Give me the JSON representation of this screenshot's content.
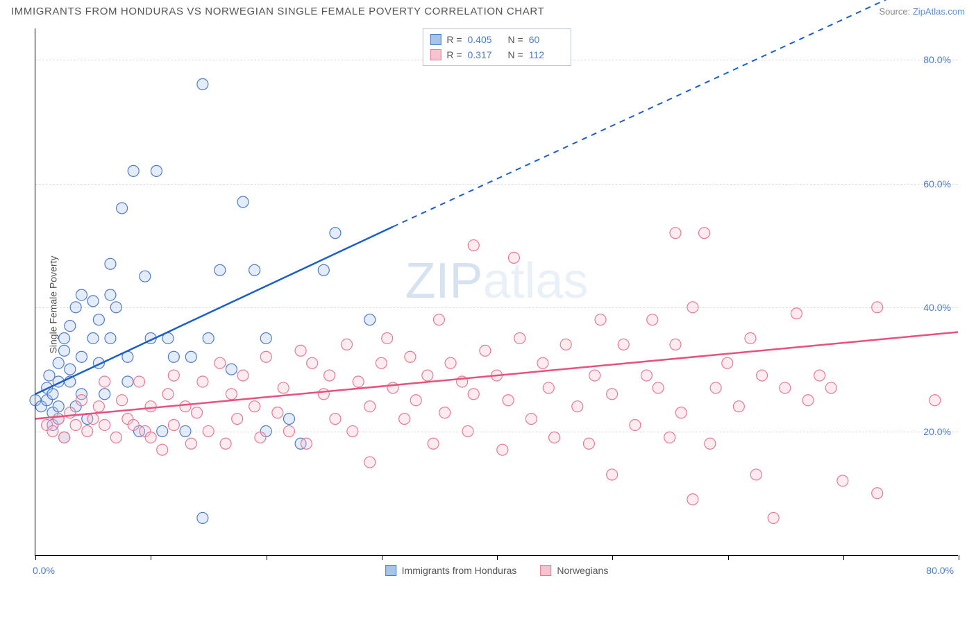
{
  "header": {
    "title": "IMMIGRANTS FROM HONDURAS VS NORWEGIAN SINGLE FEMALE POVERTY CORRELATION CHART",
    "source_prefix": "Source: ",
    "source_link": "ZipAtlas.com"
  },
  "chart": {
    "type": "scatter",
    "y_axis_label": "Single Female Poverty",
    "background_color": "#ffffff",
    "grid_color": "#dcdcdc",
    "axis_color": "#000000",
    "tick_label_color": "#4a7bc9",
    "title_fontsize": 15,
    "label_fontsize": 14,
    "xlim": [
      0,
      80
    ],
    "ylim": [
      0,
      85
    ],
    "x_min_label": "0.0%",
    "x_max_label": "80.0%",
    "y_ticks": [
      {
        "value": 20,
        "label": "20.0%"
      },
      {
        "value": 40,
        "label": "40.0%"
      },
      {
        "value": 60,
        "label": "60.0%"
      },
      {
        "value": 80,
        "label": "80.0%"
      }
    ],
    "x_tick_positions": [
      0,
      10,
      20,
      30,
      40,
      50,
      60,
      70,
      80
    ],
    "watermark": "ZIPatlas",
    "marker_radius": 8,
    "marker_opacity": 0.32,
    "line_width": 2.5,
    "series": [
      {
        "id": "honduras",
        "label": "Immigrants from Honduras",
        "color_fill": "#a8c5e8",
        "color_stroke": "#4a7bc9",
        "line_color": "#1a5fc9",
        "r_value": "0.405",
        "n_value": "60",
        "trend": {
          "x1": 0,
          "y1": 26,
          "x2_solid": 31,
          "y2_solid": 53,
          "x2_dash": 80,
          "y2_dash": 95
        },
        "points": [
          [
            0,
            25
          ],
          [
            0.5,
            24
          ],
          [
            1,
            25
          ],
          [
            1,
            27
          ],
          [
            1.2,
            29
          ],
          [
            1.5,
            23
          ],
          [
            1.5,
            26
          ],
          [
            1.5,
            21
          ],
          [
            2,
            22
          ],
          [
            2,
            28
          ],
          [
            2,
            31
          ],
          [
            2,
            24
          ],
          [
            2.5,
            19
          ],
          [
            2.5,
            33
          ],
          [
            2.5,
            35
          ],
          [
            3,
            28
          ],
          [
            3,
            37
          ],
          [
            3,
            30
          ],
          [
            3.5,
            24
          ],
          [
            3.5,
            40
          ],
          [
            4,
            32
          ],
          [
            4,
            26
          ],
          [
            4,
            42
          ],
          [
            4.5,
            22
          ],
          [
            5,
            41
          ],
          [
            5,
            35
          ],
          [
            5.5,
            31
          ],
          [
            5.5,
            38
          ],
          [
            6,
            26
          ],
          [
            6.5,
            42
          ],
          [
            6.5,
            35
          ],
          [
            6.5,
            47
          ],
          [
            7,
            40
          ],
          [
            7.5,
            56
          ],
          [
            8,
            32
          ],
          [
            8,
            28
          ],
          [
            8.5,
            62
          ],
          [
            9,
            20
          ],
          [
            9.5,
            45
          ],
          [
            10,
            35
          ],
          [
            10.5,
            62
          ],
          [
            11,
            20
          ],
          [
            11.5,
            35
          ],
          [
            12,
            32
          ],
          [
            13,
            20
          ],
          [
            13.5,
            32
          ],
          [
            14.5,
            76
          ],
          [
            14.5,
            6
          ],
          [
            15,
            35
          ],
          [
            16,
            46
          ],
          [
            17,
            30
          ],
          [
            18,
            57
          ],
          [
            19,
            46
          ],
          [
            20,
            35
          ],
          [
            20,
            20
          ],
          [
            22,
            22
          ],
          [
            23,
            18
          ],
          [
            25,
            46
          ],
          [
            26,
            52
          ],
          [
            29,
            38
          ]
        ]
      },
      {
        "id": "norwegians",
        "label": "Norwegians",
        "color_fill": "#f5c4d0",
        "color_stroke": "#e77896",
        "line_color": "#e8517c",
        "r_value": "0.317",
        "n_value": "112",
        "trend": {
          "x1": 0,
          "y1": 22,
          "x2_solid": 80,
          "y2_solid": 36,
          "x2_dash": 80,
          "y2_dash": 36
        },
        "points": [
          [
            1,
            21
          ],
          [
            1.5,
            20
          ],
          [
            2,
            22
          ],
          [
            2.5,
            19
          ],
          [
            3,
            23
          ],
          [
            3.5,
            21
          ],
          [
            4,
            25
          ],
          [
            4.5,
            20
          ],
          [
            5,
            22
          ],
          [
            5.5,
            24
          ],
          [
            6,
            21
          ],
          [
            6,
            28
          ],
          [
            7,
            19
          ],
          [
            7.5,
            25
          ],
          [
            8,
            22
          ],
          [
            8.5,
            21
          ],
          [
            9,
            28
          ],
          [
            9.5,
            20
          ],
          [
            10,
            24
          ],
          [
            10,
            19
          ],
          [
            11,
            17
          ],
          [
            11.5,
            26
          ],
          [
            12,
            29
          ],
          [
            12,
            21
          ],
          [
            13,
            24
          ],
          [
            13.5,
            18
          ],
          [
            14,
            23
          ],
          [
            14.5,
            28
          ],
          [
            15,
            20
          ],
          [
            16,
            31
          ],
          [
            16.5,
            18
          ],
          [
            17,
            26
          ],
          [
            17.5,
            22
          ],
          [
            18,
            29
          ],
          [
            19,
            24
          ],
          [
            19.5,
            19
          ],
          [
            20,
            32
          ],
          [
            21,
            23
          ],
          [
            21.5,
            27
          ],
          [
            22,
            20
          ],
          [
            23,
            33
          ],
          [
            23.5,
            18
          ],
          [
            24,
            31
          ],
          [
            25,
            26
          ],
          [
            25.5,
            29
          ],
          [
            26,
            22
          ],
          [
            27,
            34
          ],
          [
            27.5,
            20
          ],
          [
            28,
            28
          ],
          [
            29,
            24
          ],
          [
            29,
            15
          ],
          [
            30,
            31
          ],
          [
            30.5,
            35
          ],
          [
            31,
            27
          ],
          [
            32,
            22
          ],
          [
            32.5,
            32
          ],
          [
            33,
            25
          ],
          [
            34,
            29
          ],
          [
            34.5,
            18
          ],
          [
            35,
            38
          ],
          [
            35.5,
            23
          ],
          [
            36,
            31
          ],
          [
            37,
            28
          ],
          [
            37.5,
            20
          ],
          [
            38,
            26
          ],
          [
            38,
            50
          ],
          [
            39,
            33
          ],
          [
            40,
            29
          ],
          [
            40.5,
            17
          ],
          [
            41,
            25
          ],
          [
            41.5,
            48
          ],
          [
            42,
            35
          ],
          [
            43,
            22
          ],
          [
            44,
            31
          ],
          [
            44.5,
            27
          ],
          [
            45,
            19
          ],
          [
            46,
            34
          ],
          [
            47,
            24
          ],
          [
            48,
            18
          ],
          [
            48.5,
            29
          ],
          [
            49,
            38
          ],
          [
            50,
            26
          ],
          [
            50,
            13
          ],
          [
            51,
            34
          ],
          [
            52,
            21
          ],
          [
            53,
            29
          ],
          [
            53.5,
            38
          ],
          [
            54,
            27
          ],
          [
            55,
            19
          ],
          [
            55.5,
            34
          ],
          [
            55.5,
            52
          ],
          [
            56,
            23
          ],
          [
            57,
            40
          ],
          [
            57,
            9
          ],
          [
            58,
            52
          ],
          [
            58.5,
            18
          ],
          [
            59,
            27
          ],
          [
            60,
            31
          ],
          [
            61,
            24
          ],
          [
            62,
            35
          ],
          [
            62.5,
            13
          ],
          [
            63,
            29
          ],
          [
            64,
            6
          ],
          [
            65,
            27
          ],
          [
            66,
            39
          ],
          [
            67,
            25
          ],
          [
            68,
            29
          ],
          [
            69,
            27
          ],
          [
            70,
            12
          ],
          [
            73,
            10
          ],
          [
            73,
            40
          ],
          [
            78,
            25
          ]
        ]
      }
    ],
    "legend_top": {
      "r_label": "R =",
      "n_label": "N ="
    }
  }
}
